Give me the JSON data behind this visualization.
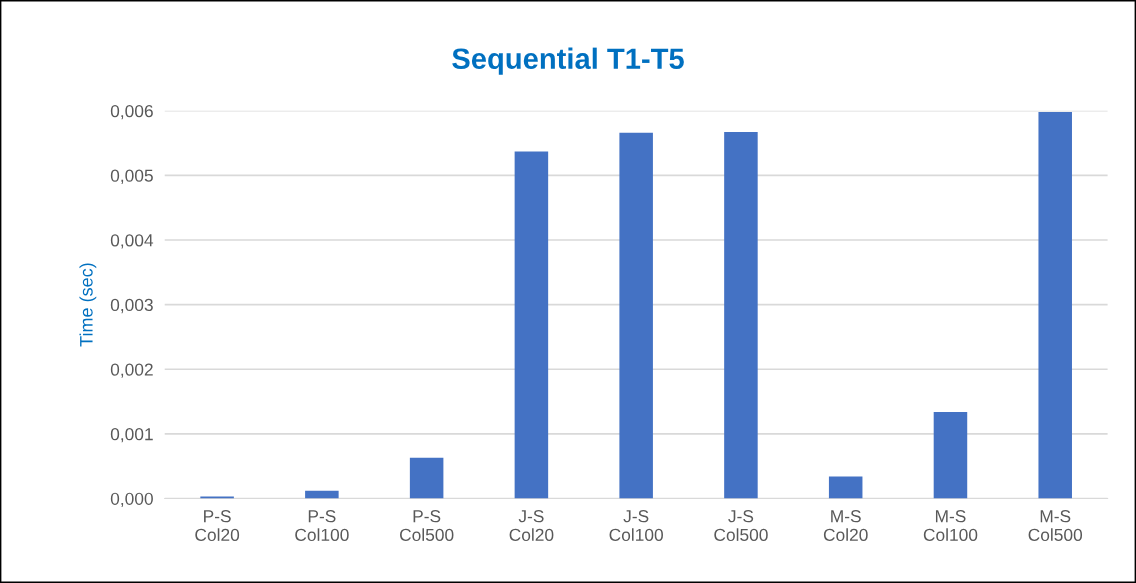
{
  "chart_data": {
    "type": "bar",
    "title": "Sequential T1-T5",
    "ylabel": "Time (sec)",
    "categories": [
      "P-S\nCol20",
      "P-S\nCol100",
      "P-S\nCol500",
      "J-S\nCol20",
      "J-S\nCol100",
      "J-S\nCol500",
      "M-S\nCol20",
      "M-S\nCol100",
      "M-S\nCol500"
    ],
    "values": [
      3e-05,
      0.00012,
      0.00063,
      0.00537,
      0.00566,
      0.00567,
      0.00034,
      0.00134,
      0.00598
    ],
    "color": "#4472c4",
    "ylim": [
      0,
      0.006
    ],
    "yticks": [
      {
        "value": 0,
        "label": "0,000"
      },
      {
        "value": 0.001,
        "label": "0,001"
      },
      {
        "value": 0.002,
        "label": "0,002"
      },
      {
        "value": 0.003,
        "label": "0,003"
      },
      {
        "value": 0.004,
        "label": "0,004"
      },
      {
        "value": 0.005,
        "label": "0,005"
      },
      {
        "value": 0.006,
        "label": "0,006"
      }
    ],
    "grid": "y"
  }
}
